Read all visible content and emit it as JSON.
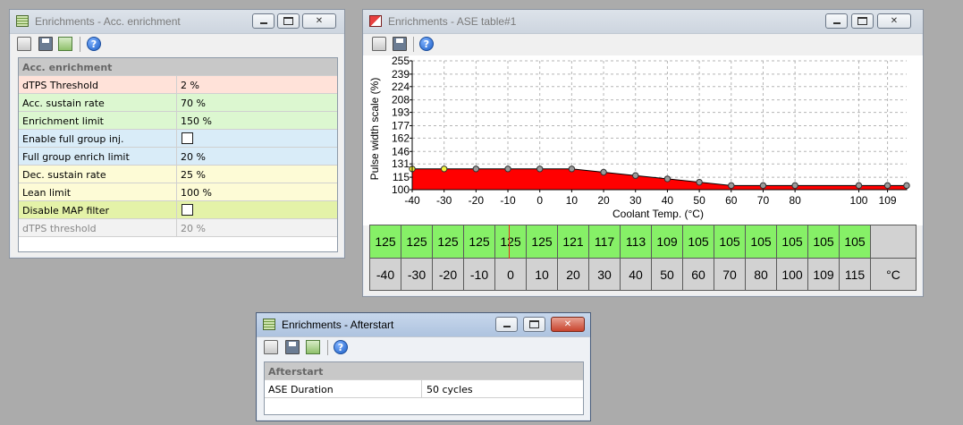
{
  "acc_window": {
    "title": "Enrichments - Acc. enrichment",
    "section": "Acc. enrichment",
    "rows": [
      {
        "label": "dTPS Threshold",
        "value": "2 %",
        "color": "red"
      },
      {
        "label": "Acc. sustain rate",
        "value": "70 %",
        "color": "green"
      },
      {
        "label": "Enrichment limit",
        "value": "150 %",
        "color": "green"
      },
      {
        "label": "Enable full group inj.",
        "value": "",
        "color": "blue",
        "checkbox": true
      },
      {
        "label": "Full group enrich limit",
        "value": "20 %",
        "color": "blue"
      },
      {
        "label": "Dec. sustain rate",
        "value": "25 %",
        "color": "yellow"
      },
      {
        "label": "Lean limit",
        "value": "100 %",
        "color": "yellow"
      },
      {
        "label": "Disable MAP filter",
        "value": "",
        "color": "lime",
        "checkbox": true
      },
      {
        "label": "dTPS threshold",
        "value": "20 %",
        "color": "grey"
      }
    ]
  },
  "ase_window": {
    "title": "Enrichments - ASE table#1",
    "table_values": [
      "125",
      "125",
      "125",
      "125",
      "125",
      "125",
      "121",
      "117",
      "113",
      "109",
      "105",
      "105",
      "105",
      "105",
      "105",
      "105"
    ],
    "table_temps": [
      "-40",
      "-30",
      "-20",
      "-10",
      "0",
      "10",
      "20",
      "30",
      "40",
      "50",
      "60",
      "70",
      "80",
      "100",
      "109",
      "115"
    ],
    "unit": "°C"
  },
  "chart_data": {
    "type": "area",
    "xlabel": "Coolant Temp. (°C)",
    "ylabel": "Pulse width scale (%)",
    "yticks": [
      100,
      115,
      131,
      146,
      162,
      177,
      193,
      208,
      224,
      239,
      255
    ],
    "xticks": [
      -40,
      -30,
      -20,
      -10,
      0,
      10,
      20,
      30,
      40,
      50,
      60,
      70,
      80,
      100,
      109
    ],
    "xlim": [
      -40,
      115
    ],
    "ylim": [
      100,
      255
    ],
    "points": [
      {
        "x": -40,
        "y": 125
      },
      {
        "x": -30,
        "y": 125
      },
      {
        "x": -20,
        "y": 125
      },
      {
        "x": -10,
        "y": 125
      },
      {
        "x": 0,
        "y": 125
      },
      {
        "x": 10,
        "y": 125
      },
      {
        "x": 20,
        "y": 121
      },
      {
        "x": 30,
        "y": 117
      },
      {
        "x": 40,
        "y": 113
      },
      {
        "x": 50,
        "y": 109
      },
      {
        "x": 60,
        "y": 105
      },
      {
        "x": 70,
        "y": 105
      },
      {
        "x": 80,
        "y": 105
      },
      {
        "x": 100,
        "y": 105
      },
      {
        "x": 109,
        "y": 105
      },
      {
        "x": 115,
        "y": 105
      }
    ],
    "fill_color": "#ff0000",
    "grid": true
  },
  "after_window": {
    "title": "Enrichments - Afterstart",
    "section": "Afterstart",
    "rows": [
      {
        "label": "ASE Duration",
        "value": "50 cycles"
      }
    ]
  }
}
